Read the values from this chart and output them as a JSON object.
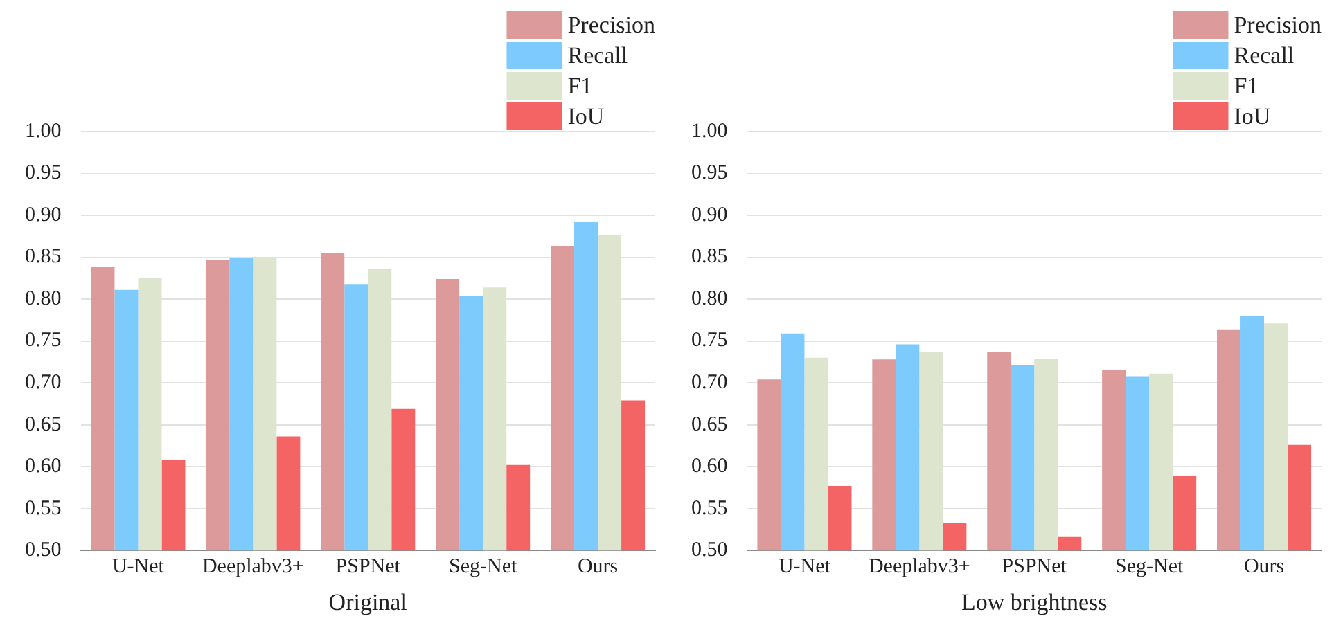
{
  "chart_data": [
    {
      "type": "bar",
      "xlabel": "Original",
      "categories": [
        "U-Net",
        "Deeplabv3+",
        "PSPNet",
        "Seg-Net",
        "Ours"
      ],
      "ylim": [
        0.5,
        1.0
      ],
      "yticks": [
        {
          "value": 0.5,
          "label": "0.50"
        },
        {
          "value": 0.55,
          "label": "0.55"
        },
        {
          "value": 0.6,
          "label": "0.60"
        },
        {
          "value": 0.65,
          "label": "0.65"
        },
        {
          "value": 0.7,
          "label": "0.70"
        },
        {
          "value": 0.75,
          "label": "0.75"
        },
        {
          "value": 0.8,
          "label": "0.80"
        },
        {
          "value": 0.85,
          "label": "0.85"
        },
        {
          "value": 0.9,
          "label": "0.90"
        },
        {
          "value": 0.95,
          "label": "0.95"
        },
        {
          "value": 1.0,
          "label": "1.00"
        }
      ],
      "grid": "y",
      "legend": "top right",
      "series": [
        {
          "name": "Precision",
          "color": "#dc9a9a",
          "values": [
            0.838,
            0.847,
            0.855,
            0.824,
            0.863
          ]
        },
        {
          "name": "Recall",
          "color": "#7dcbfd",
          "values": [
            0.811,
            0.849,
            0.818,
            0.804,
            0.892
          ]
        },
        {
          "name": "F1",
          "color": "#dee5cf",
          "values": [
            0.825,
            0.849,
            0.836,
            0.814,
            0.877
          ]
        },
        {
          "name": "IoU",
          "color": "#f46464",
          "values": [
            0.608,
            0.636,
            0.669,
            0.602,
            0.679
          ]
        }
      ]
    },
    {
      "type": "bar",
      "xlabel": "Low brightness",
      "categories": [
        "U-Net",
        "Deeplabv3+",
        "PSPNet",
        "Seg-Net",
        "Ours"
      ],
      "ylim": [
        0.5,
        1.0
      ],
      "yticks": [
        {
          "value": 0.5,
          "label": "0.50"
        },
        {
          "value": 0.55,
          "label": "0.55"
        },
        {
          "value": 0.6,
          "label": "0.60"
        },
        {
          "value": 0.65,
          "label": "0.65"
        },
        {
          "value": 0.7,
          "label": "0.70"
        },
        {
          "value": 0.75,
          "label": "0.75"
        },
        {
          "value": 0.8,
          "label": "0.80"
        },
        {
          "value": 0.85,
          "label": "0.85"
        },
        {
          "value": 0.9,
          "label": "0.90"
        },
        {
          "value": 0.95,
          "label": "0.95"
        },
        {
          "value": 1.0,
          "label": "1.00"
        }
      ],
      "grid": "y",
      "legend": "top right",
      "series": [
        {
          "name": "Precision",
          "color": "#dc9a9a",
          "values": [
            0.704,
            0.728,
            0.737,
            0.715,
            0.763
          ]
        },
        {
          "name": "Recall",
          "color": "#7dcbfd",
          "values": [
            0.759,
            0.746,
            0.721,
            0.708,
            0.78
          ]
        },
        {
          "name": "F1",
          "color": "#dee5cf",
          "values": [
            0.73,
            0.737,
            0.729,
            0.711,
            0.771
          ]
        },
        {
          "name": "IoU",
          "color": "#f46464",
          "values": [
            0.577,
            0.533,
            0.516,
            0.589,
            0.626
          ]
        }
      ]
    }
  ]
}
